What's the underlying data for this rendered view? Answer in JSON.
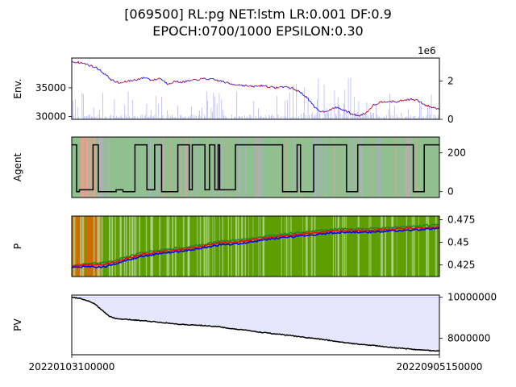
{
  "figure": {
    "title_line1": "[069500] RL:pg NET:lstm LR:0.001 DF:0.9",
    "title_line2": "EPOCH:0700/1000 EPSILON:0.30"
  },
  "chart_data": [
    {
      "type": "line",
      "panel": "env",
      "ylabel": "Env.",
      "left_ticks": [
        30000,
        35000
      ],
      "left_ylim": [
        29500,
        40200
      ],
      "right_offset_label": "1e6",
      "right_ticks": [
        0,
        2
      ],
      "right_ylim": [
        0,
        3.2
      ],
      "x_start": "20220103100000",
      "x_end": "20220905150000",
      "price_series": [
        {
          "x": 0.0,
          "y": 39600
        },
        {
          "x": 0.03,
          "y": 39300
        },
        {
          "x": 0.05,
          "y": 38900
        },
        {
          "x": 0.07,
          "y": 38400
        },
        {
          "x": 0.09,
          "y": 37400
        },
        {
          "x": 0.11,
          "y": 36300
        },
        {
          "x": 0.13,
          "y": 35800
        },
        {
          "x": 0.15,
          "y": 36100
        },
        {
          "x": 0.18,
          "y": 36500
        },
        {
          "x": 0.2,
          "y": 36800
        },
        {
          "x": 0.22,
          "y": 36300
        },
        {
          "x": 0.24,
          "y": 36700
        },
        {
          "x": 0.26,
          "y": 35700
        },
        {
          "x": 0.28,
          "y": 36100
        },
        {
          "x": 0.3,
          "y": 36000
        },
        {
          "x": 0.33,
          "y": 36300
        },
        {
          "x": 0.36,
          "y": 36600
        },
        {
          "x": 0.39,
          "y": 36400
        },
        {
          "x": 0.41,
          "y": 36100
        },
        {
          "x": 0.43,
          "y": 35700
        },
        {
          "x": 0.46,
          "y": 35500
        },
        {
          "x": 0.49,
          "y": 35200
        },
        {
          "x": 0.52,
          "y": 35400
        },
        {
          "x": 0.55,
          "y": 35000
        },
        {
          "x": 0.58,
          "y": 35200
        },
        {
          "x": 0.6,
          "y": 34900
        },
        {
          "x": 0.62,
          "y": 34300
        },
        {
          "x": 0.64,
          "y": 33300
        },
        {
          "x": 0.66,
          "y": 31600
        },
        {
          "x": 0.68,
          "y": 30800
        },
        {
          "x": 0.7,
          "y": 31100
        },
        {
          "x": 0.72,
          "y": 31600
        },
        {
          "x": 0.74,
          "y": 31100
        },
        {
          "x": 0.76,
          "y": 30500
        },
        {
          "x": 0.78,
          "y": 30100
        },
        {
          "x": 0.8,
          "y": 30600
        },
        {
          "x": 0.82,
          "y": 32000
        },
        {
          "x": 0.84,
          "y": 32500
        },
        {
          "x": 0.86,
          "y": 32700
        },
        {
          "x": 0.88,
          "y": 32500
        },
        {
          "x": 0.9,
          "y": 32800
        },
        {
          "x": 0.92,
          "y": 33000
        },
        {
          "x": 0.94,
          "y": 32800
        },
        {
          "x": 0.96,
          "y": 32000
        },
        {
          "x": 0.98,
          "y": 31600
        },
        {
          "x": 1.0,
          "y": 31300
        }
      ],
      "colors": {
        "price_up": "#ff0000",
        "price_down": "#0000ff",
        "volume": "#8080ff"
      }
    },
    {
      "type": "line",
      "panel": "agent",
      "ylabel": "Agent",
      "right_ticks": [
        0,
        200
      ],
      "ylim": [
        -30,
        280
      ],
      "colors": {
        "line": "#000000",
        "buy_band": "#90c090",
        "sell_band": "#e8a090"
      }
    },
    {
      "type": "line",
      "panel": "policy",
      "ylabel": "P",
      "right_ticks": [
        0.425,
        0.45,
        0.475
      ],
      "ylim": [
        0.412,
        0.479
      ],
      "series": [
        {
          "values": [
            [
              0.0,
              0.424
            ],
            [
              0.04,
              0.426
            ],
            [
              0.08,
              0.427
            ],
            [
              0.12,
              0.43
            ],
            [
              0.16,
              0.435
            ],
            [
              0.2,
              0.439
            ],
            [
              0.25,
              0.442
            ],
            [
              0.3,
              0.444
            ],
            [
              0.35,
              0.447
            ],
            [
              0.4,
              0.451
            ],
            [
              0.45,
              0.452
            ],
            [
              0.5,
              0.455
            ],
            [
              0.55,
              0.458
            ],
            [
              0.6,
              0.46
            ],
            [
              0.65,
              0.462
            ],
            [
              0.7,
              0.464
            ],
            [
              0.75,
              0.465
            ],
            [
              0.8,
              0.465
            ],
            [
              0.85,
              0.466
            ],
            [
              0.9,
              0.467
            ],
            [
              0.95,
              0.468
            ],
            [
              1.0,
              0.47
            ]
          ],
          "color": "#228b22"
        },
        {
          "values": [
            [
              0.0,
              0.423
            ],
            [
              0.04,
              0.425
            ],
            [
              0.08,
              0.425
            ],
            [
              0.12,
              0.428
            ],
            [
              0.16,
              0.433
            ],
            [
              0.2,
              0.437
            ],
            [
              0.25,
              0.44
            ],
            [
              0.3,
              0.442
            ],
            [
              0.35,
              0.445
            ],
            [
              0.4,
              0.449
            ],
            [
              0.45,
              0.45
            ],
            [
              0.5,
              0.453
            ],
            [
              0.55,
              0.456
            ],
            [
              0.6,
              0.458
            ],
            [
              0.65,
              0.46
            ],
            [
              0.7,
              0.462
            ],
            [
              0.75,
              0.463
            ],
            [
              0.8,
              0.463
            ],
            [
              0.85,
              0.464
            ],
            [
              0.9,
              0.465
            ],
            [
              0.95,
              0.466
            ],
            [
              1.0,
              0.467
            ]
          ],
          "color": "#ff0000"
        },
        {
          "values": [
            [
              0.0,
              0.422
            ],
            [
              0.04,
              0.423
            ],
            [
              0.08,
              0.422
            ],
            [
              0.12,
              0.426
            ],
            [
              0.16,
              0.431
            ],
            [
              0.2,
              0.435
            ],
            [
              0.25,
              0.438
            ],
            [
              0.3,
              0.44
            ],
            [
              0.35,
              0.443
            ],
            [
              0.4,
              0.447
            ],
            [
              0.45,
              0.448
            ],
            [
              0.5,
              0.451
            ],
            [
              0.55,
              0.454
            ],
            [
              0.6,
              0.456
            ],
            [
              0.65,
              0.458
            ],
            [
              0.7,
              0.46
            ],
            [
              0.75,
              0.461
            ],
            [
              0.8,
              0.461
            ],
            [
              0.85,
              0.462
            ],
            [
              0.9,
              0.463
            ],
            [
              0.95,
              0.464
            ],
            [
              1.0,
              0.466
            ]
          ],
          "color": "#0000ff"
        }
      ],
      "colors": {
        "bg_main": "#5e9e00",
        "bg_early": "#d46a00"
      }
    },
    {
      "type": "area",
      "panel": "pv",
      "ylabel": "PV",
      "right_ticks": [
        8000000,
        10000000
      ],
      "ylim": [
        7200000,
        10100000
      ],
      "baseline": 10000000,
      "series": [
        {
          "name": "",
          "values": [
            [
              0.0,
              10000000
            ],
            [
              0.02,
              9950000
            ],
            [
              0.04,
              9850000
            ],
            [
              0.06,
              9700000
            ],
            [
              0.08,
              9400000
            ],
            [
              0.1,
              9100000
            ],
            [
              0.12,
              8950000
            ],
            [
              0.16,
              8900000
            ],
            [
              0.2,
              8850000
            ],
            [
              0.24,
              8780000
            ],
            [
              0.28,
              8700000
            ],
            [
              0.32,
              8650000
            ],
            [
              0.36,
              8620000
            ],
            [
              0.4,
              8560000
            ],
            [
              0.44,
              8450000
            ],
            [
              0.48,
              8380000
            ],
            [
              0.52,
              8280000
            ],
            [
              0.56,
              8200000
            ],
            [
              0.6,
              8120000
            ],
            [
              0.64,
              8030000
            ],
            [
              0.68,
              7950000
            ],
            [
              0.72,
              7850000
            ],
            [
              0.76,
              7750000
            ],
            [
              0.8,
              7680000
            ],
            [
              0.84,
              7620000
            ],
            [
              0.88,
              7540000
            ],
            [
              0.92,
              7480000
            ],
            [
              0.96,
              7420000
            ],
            [
              1.0,
              7380000
            ]
          ],
          "color": "#000000"
        }
      ],
      "colors": {
        "fill": "#e6e6ff"
      }
    }
  ]
}
